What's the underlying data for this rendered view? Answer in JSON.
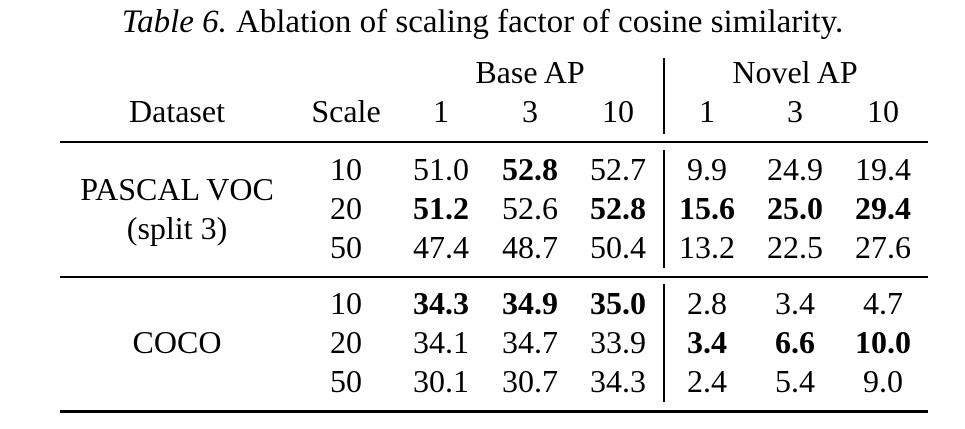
{
  "caption": {
    "label": "Table 6.",
    "text": "Ablation of scaling factor of cosine similarity."
  },
  "header": {
    "group_base": "Base AP",
    "group_novel": "Novel AP",
    "col_dataset": "Dataset",
    "col_scale": "Scale",
    "shots": [
      "1",
      "3",
      "10"
    ]
  },
  "groups": [
    {
      "dataset_lines": [
        "PASCAL VOC",
        "(split 3)"
      ],
      "rows": [
        {
          "scale": "10",
          "base": [
            "51.0",
            "52.8",
            "52.7"
          ],
          "novel": [
            "9.9",
            "24.9",
            "19.4"
          ],
          "bold_base": [
            false,
            true,
            false
          ],
          "bold_novel": [
            false,
            false,
            false
          ]
        },
        {
          "scale": "20",
          "base": [
            "51.2",
            "52.6",
            "52.8"
          ],
          "novel": [
            "15.6",
            "25.0",
            "29.4"
          ],
          "bold_base": [
            true,
            false,
            true
          ],
          "bold_novel": [
            true,
            true,
            true
          ]
        },
        {
          "scale": "50",
          "base": [
            "47.4",
            "48.7",
            "50.4"
          ],
          "novel": [
            "13.2",
            "22.5",
            "27.6"
          ],
          "bold_base": [
            false,
            false,
            false
          ],
          "bold_novel": [
            false,
            false,
            false
          ]
        }
      ]
    },
    {
      "dataset_lines": [
        "COCO"
      ],
      "rows": [
        {
          "scale": "10",
          "base": [
            "34.3",
            "34.9",
            "35.0"
          ],
          "novel": [
            "2.8",
            "3.4",
            "4.7"
          ],
          "bold_base": [
            true,
            true,
            true
          ],
          "bold_novel": [
            false,
            false,
            false
          ]
        },
        {
          "scale": "20",
          "base": [
            "34.1",
            "34.7",
            "33.9"
          ],
          "novel": [
            "3.4",
            "6.6",
            "10.0"
          ],
          "bold_base": [
            false,
            false,
            false
          ],
          "bold_novel": [
            true,
            true,
            true
          ]
        },
        {
          "scale": "50",
          "base": [
            "30.1",
            "30.7",
            "34.3"
          ],
          "novel": [
            "2.4",
            "5.4",
            "9.0"
          ],
          "bold_base": [
            false,
            false,
            false
          ],
          "bold_novel": [
            false,
            false,
            false
          ]
        }
      ]
    }
  ]
}
